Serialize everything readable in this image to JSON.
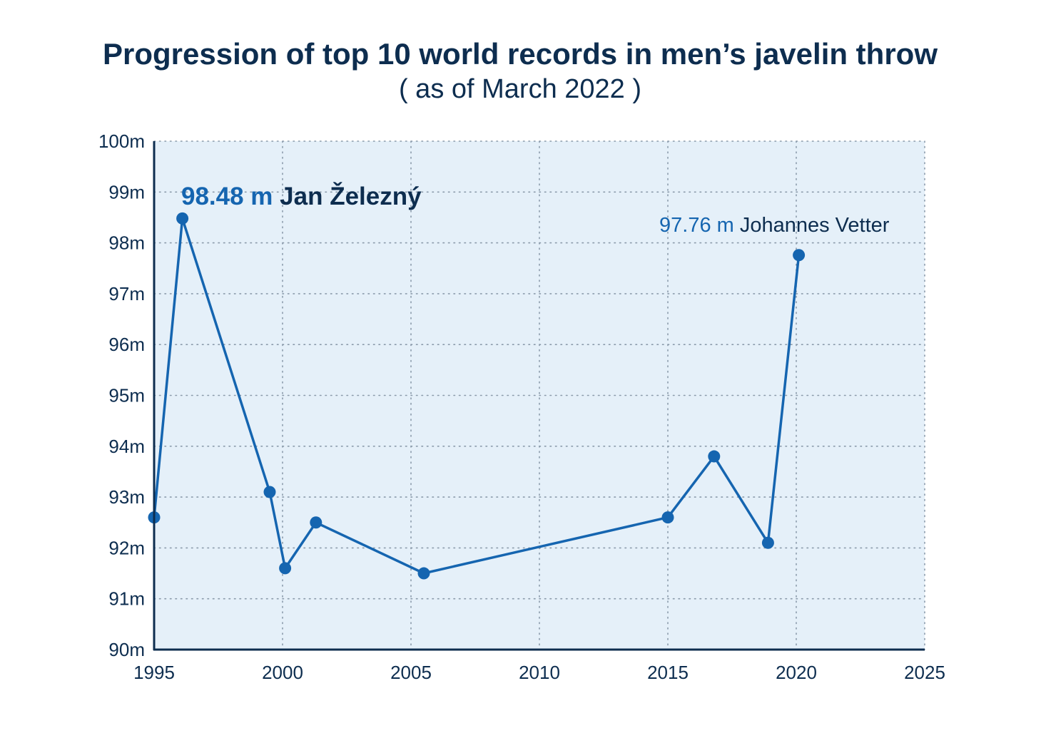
{
  "chart_data": {
    "type": "line",
    "title": "Progression of top 10 world records in men’s javelin throw",
    "subtitle": "( as of March 2022 )",
    "xlabel": "",
    "ylabel": "",
    "xlim": [
      1995,
      2025
    ],
    "ylim": [
      90,
      100
    ],
    "x_ticks": [
      "1995",
      "2000",
      "2005",
      "2010",
      "2015",
      "2020",
      "2025"
    ],
    "y_ticks": [
      "90m",
      "91m",
      "92m",
      "93m",
      "94m",
      "95m",
      "96m",
      "97m",
      "98m",
      "99m",
      "100m"
    ],
    "grid": true,
    "colors": {
      "line": "#1565b0",
      "plot_background": "#e5f0f9",
      "axis": "#0d2d4f",
      "grid": "#8a9aaa"
    },
    "series": [
      {
        "points": [
          {
            "x": 1995.0,
            "y": 92.6
          },
          {
            "x": 1996.1,
            "y": 98.48
          },
          {
            "x": 1999.5,
            "y": 93.1
          },
          {
            "x": 2000.1,
            "y": 91.6
          },
          {
            "x": 2001.3,
            "y": 92.5
          },
          {
            "x": 2005.5,
            "y": 91.5
          },
          {
            "x": 2015.0,
            "y": 92.6
          },
          {
            "x": 2016.8,
            "y": 93.8
          },
          {
            "x": 2018.9,
            "y": 92.1
          },
          {
            "x": 2020.1,
            "y": 97.76
          }
        ]
      }
    ],
    "annotations": [
      {
        "value": "98.48 m",
        "name": "Jan Železný",
        "x": 1996.1,
        "y": 98.48,
        "bold": true
      },
      {
        "value": "97.76 m",
        "name": "Johannes Vetter",
        "x": 2020.1,
        "y": 97.76,
        "bold": false
      }
    ]
  }
}
